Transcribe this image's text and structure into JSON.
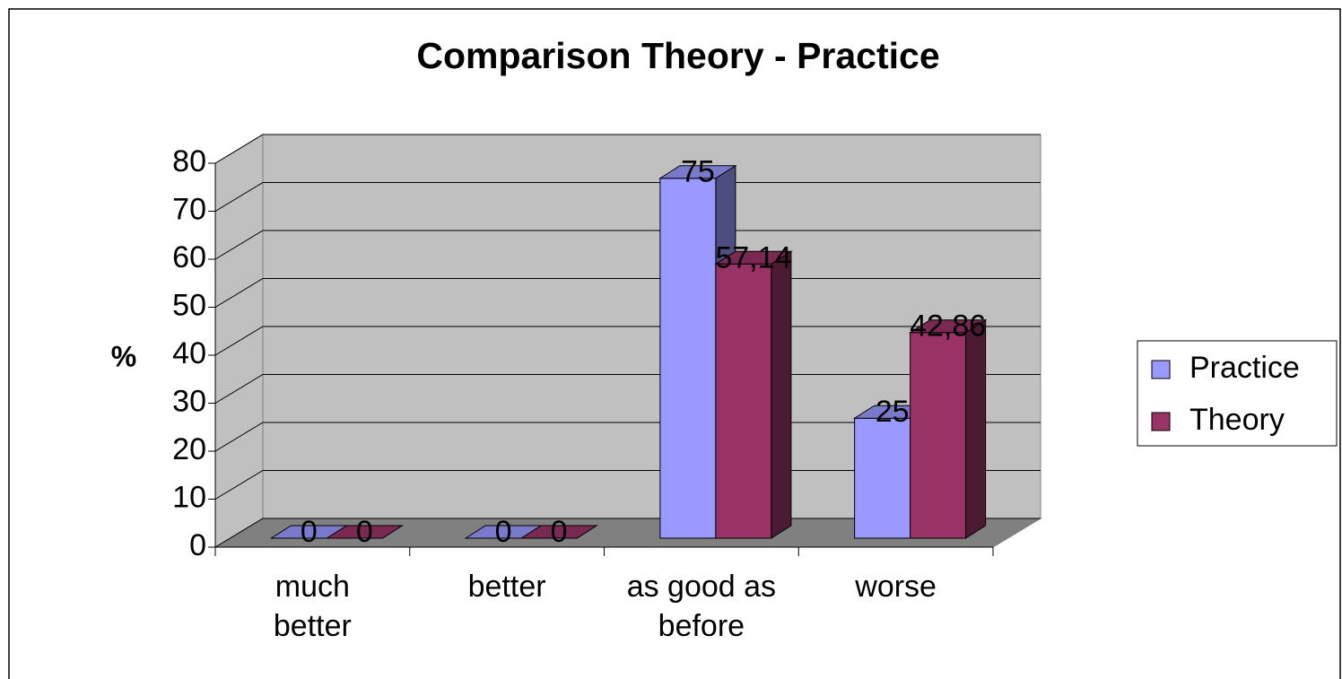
{
  "chart_data": {
    "type": "bar3d",
    "title": "Comparison Theory - Practice",
    "y_label": "%",
    "categories": [
      "much better",
      "better",
      "as good as before",
      "worse"
    ],
    "series": [
      {
        "name": "Practice",
        "color": "#9999ff",
        "values": [
          0,
          0,
          75,
          25
        ],
        "value_labels": [
          "0",
          "0",
          "75",
          "25"
        ]
      },
      {
        "name": "Theory",
        "color": "#993366",
        "values": [
          0,
          0,
          57.14,
          42.86
        ],
        "value_labels": [
          "0",
          "0",
          "57,14",
          "42,86"
        ]
      }
    ],
    "ylim": [
      0,
      80
    ],
    "yticks": [
      0,
      10,
      20,
      30,
      40,
      50,
      60,
      70,
      80
    ],
    "grid": true,
    "legend": "right"
  }
}
